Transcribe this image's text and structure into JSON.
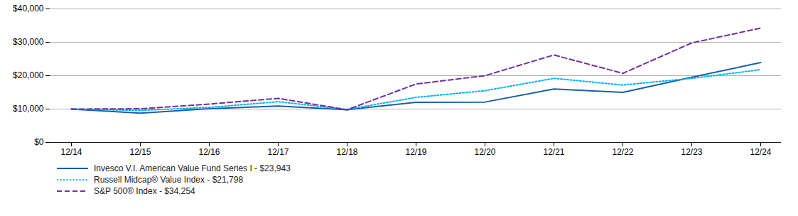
{
  "chart_data": {
    "type": "line",
    "categories": [
      "12/14",
      "12/15",
      "12/16",
      "12/17",
      "12/18",
      "12/19",
      "12/20",
      "12/21",
      "12/22",
      "12/23",
      "12/24"
    ],
    "series": [
      {
        "name": "Invesco V.I. American Value Fund Series I - $23,943",
        "color": "#1a5fa8",
        "line_style": "solid",
        "values": [
          10000,
          8800,
          10100,
          10900,
          9800,
          12000,
          12100,
          16000,
          15000,
          19500,
          23943
        ]
      },
      {
        "name": "Russell Midcap® Value Index - $21,798",
        "color": "#00b0f0",
        "line_style": "dotted",
        "values": [
          10000,
          9600,
          10500,
          12200,
          9900,
          13500,
          15500,
          19200,
          17200,
          19200,
          21798
        ]
      },
      {
        "name": "S&P 500® Index - $34,254",
        "color": "#7030a0",
        "line_style": "dashed",
        "values": [
          10000,
          10100,
          11500,
          13200,
          9800,
          17500,
          20000,
          26200,
          20700,
          29800,
          34254
        ]
      }
    ],
    "ylim": [
      0,
      40000
    ],
    "yticks": [
      {
        "value": 0,
        "label": "$0"
      },
      {
        "value": 10000,
        "label": "$10,000"
      },
      {
        "value": 20000,
        "label": "$20,000"
      },
      {
        "value": 30000,
        "label": "$30,000"
      },
      {
        "value": 40000,
        "label": "$40,000"
      }
    ],
    "grid": true,
    "legend": "lower left"
  }
}
